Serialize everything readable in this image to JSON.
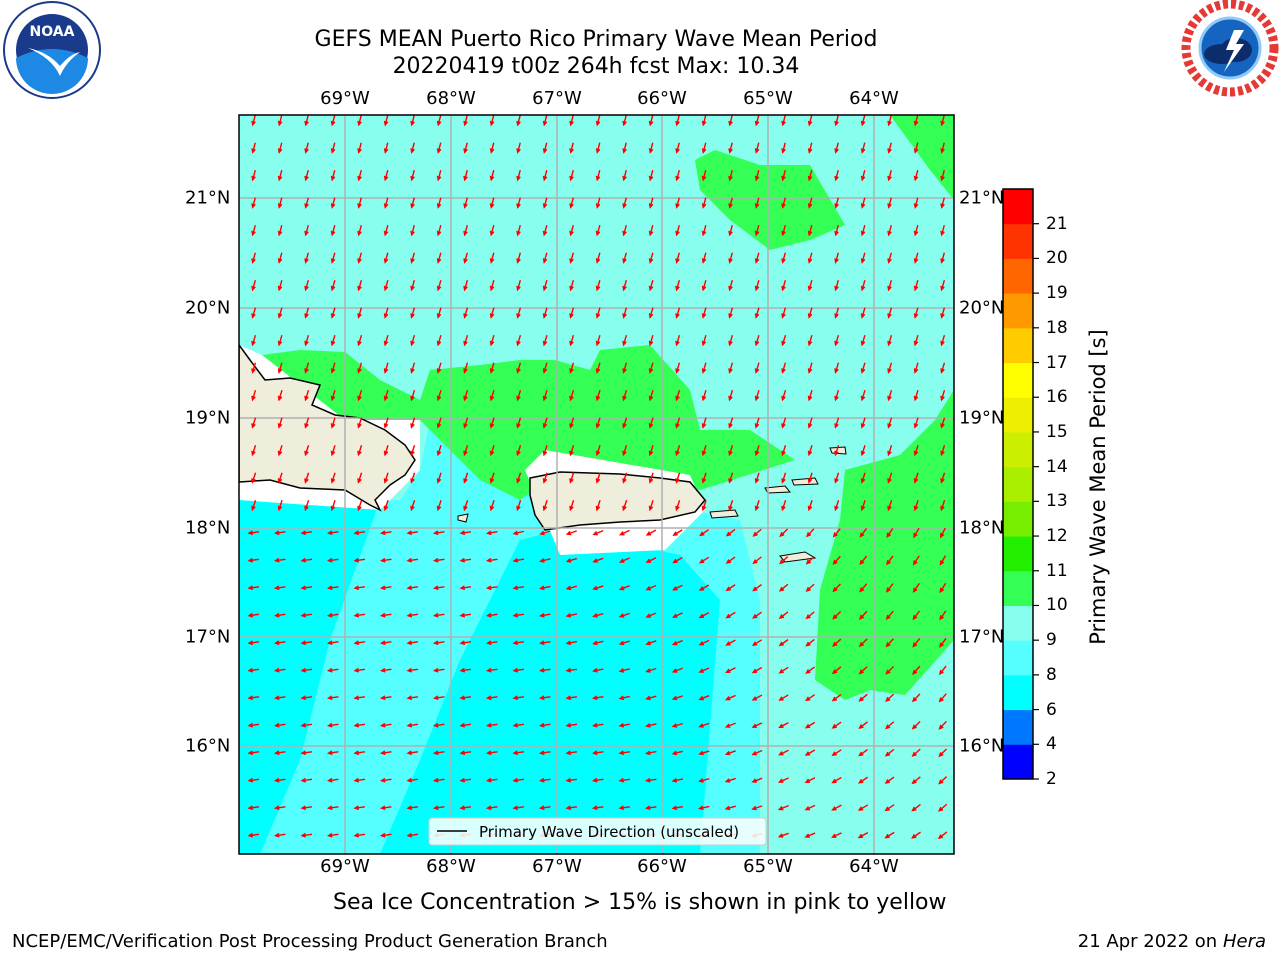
{
  "title": {
    "line1": "GEFS MEAN Puerto Rico Primary Wave Mean Period",
    "line2": "20220419 t00z 264h fcst   Max: 10.34"
  },
  "logos": {
    "left": {
      "name": "noaa-logo",
      "text": "NOAA",
      "ring_text": "NATIONAL OCEANIC AND ATMOSPHERIC ADMINISTRATION · U.S. DEPARTMENT OF COMMERCE"
    },
    "right": {
      "name": "nws-logo",
      "ring_text": "NATIONAL WEATHER SERVICE"
    }
  },
  "map": {
    "lon_labels": [
      "69°W",
      "68°W",
      "67°W",
      "66°W",
      "65°W",
      "64°W"
    ],
    "lat_labels": [
      "21°N",
      "20°N",
      "19°N",
      "18°N",
      "17°N",
      "16°N"
    ],
    "legend": "Primary Wave Direction (unscaled)",
    "arrow_color": "#ff0000"
  },
  "colorbar": {
    "title": "Primary Wave Mean Period [s]",
    "levels": [
      "2",
      "4",
      "6",
      "8",
      "9",
      "10",
      "11",
      "12",
      "13",
      "14",
      "15",
      "16",
      "17",
      "18",
      "19",
      "20",
      "21"
    ],
    "colors": [
      "#0000ff",
      "#0077ff",
      "#00ffff",
      "#55ffff",
      "#88ffee",
      "#33ff55",
      "#22ee00",
      "#77ee00",
      "#aaee00",
      "#ccee00",
      "#eeee00",
      "#ffff00",
      "#ffcc00",
      "#ff9900",
      "#ff6600",
      "#ff3300",
      "#ff0000"
    ]
  },
  "footnote": "Sea Ice Concentration > 15% is shown in pink to yellow",
  "credit": {
    "left": "NCEP/EMC/Verification Post Processing Product Generation Branch",
    "right_prefix": "21 Apr 2022 on ",
    "right_host": "Hera"
  }
}
